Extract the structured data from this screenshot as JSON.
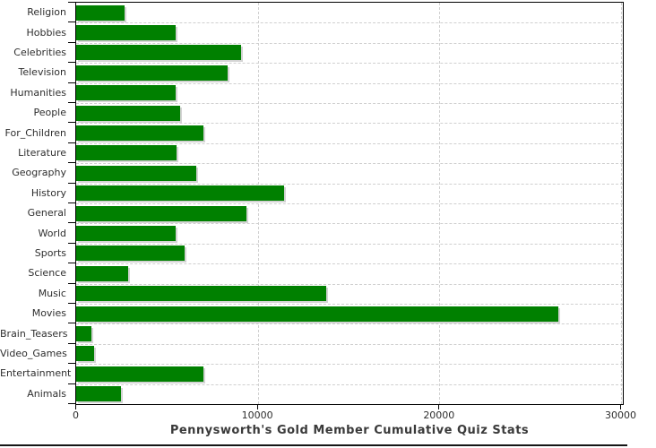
{
  "chart_data": {
    "type": "bar",
    "orientation": "horizontal",
    "title": "Pennysworth's Gold Member Cumulative Quiz Stats",
    "categories": [
      "Religion",
      "Hobbies",
      "Celebrities",
      "Television",
      "Humanities",
      "People",
      "For_Children",
      "Literature",
      "Geography",
      "History",
      "General",
      "World",
      "Sports",
      "Science",
      "Music",
      "Movies",
      "Brain_Teasers",
      "Video_Games",
      "Entertainment",
      "Animals"
    ],
    "values": [
      2680,
      5500,
      9100,
      8360,
      5470,
      5700,
      7030,
      5550,
      6590,
      11430,
      9380,
      5470,
      5990,
      2880,
      13790,
      26550,
      860,
      990,
      7000,
      2480
    ],
    "xlim": [
      0,
      30100
    ],
    "xticks": [
      0,
      10000,
      20000,
      30000
    ],
    "xtick_labels": [
      "0",
      "10000",
      "20000",
      "30000"
    ],
    "xlabel": "",
    "ylabel": "",
    "legend_position": "none",
    "grid": "dashed",
    "bar_color": "#008000",
    "shadow_color": "#d4d4d4",
    "grid_color": "#cfcfcf",
    "axis_color": "#000000",
    "label_color": "#2e2e2e",
    "title_color": "#3a3a3a"
  }
}
